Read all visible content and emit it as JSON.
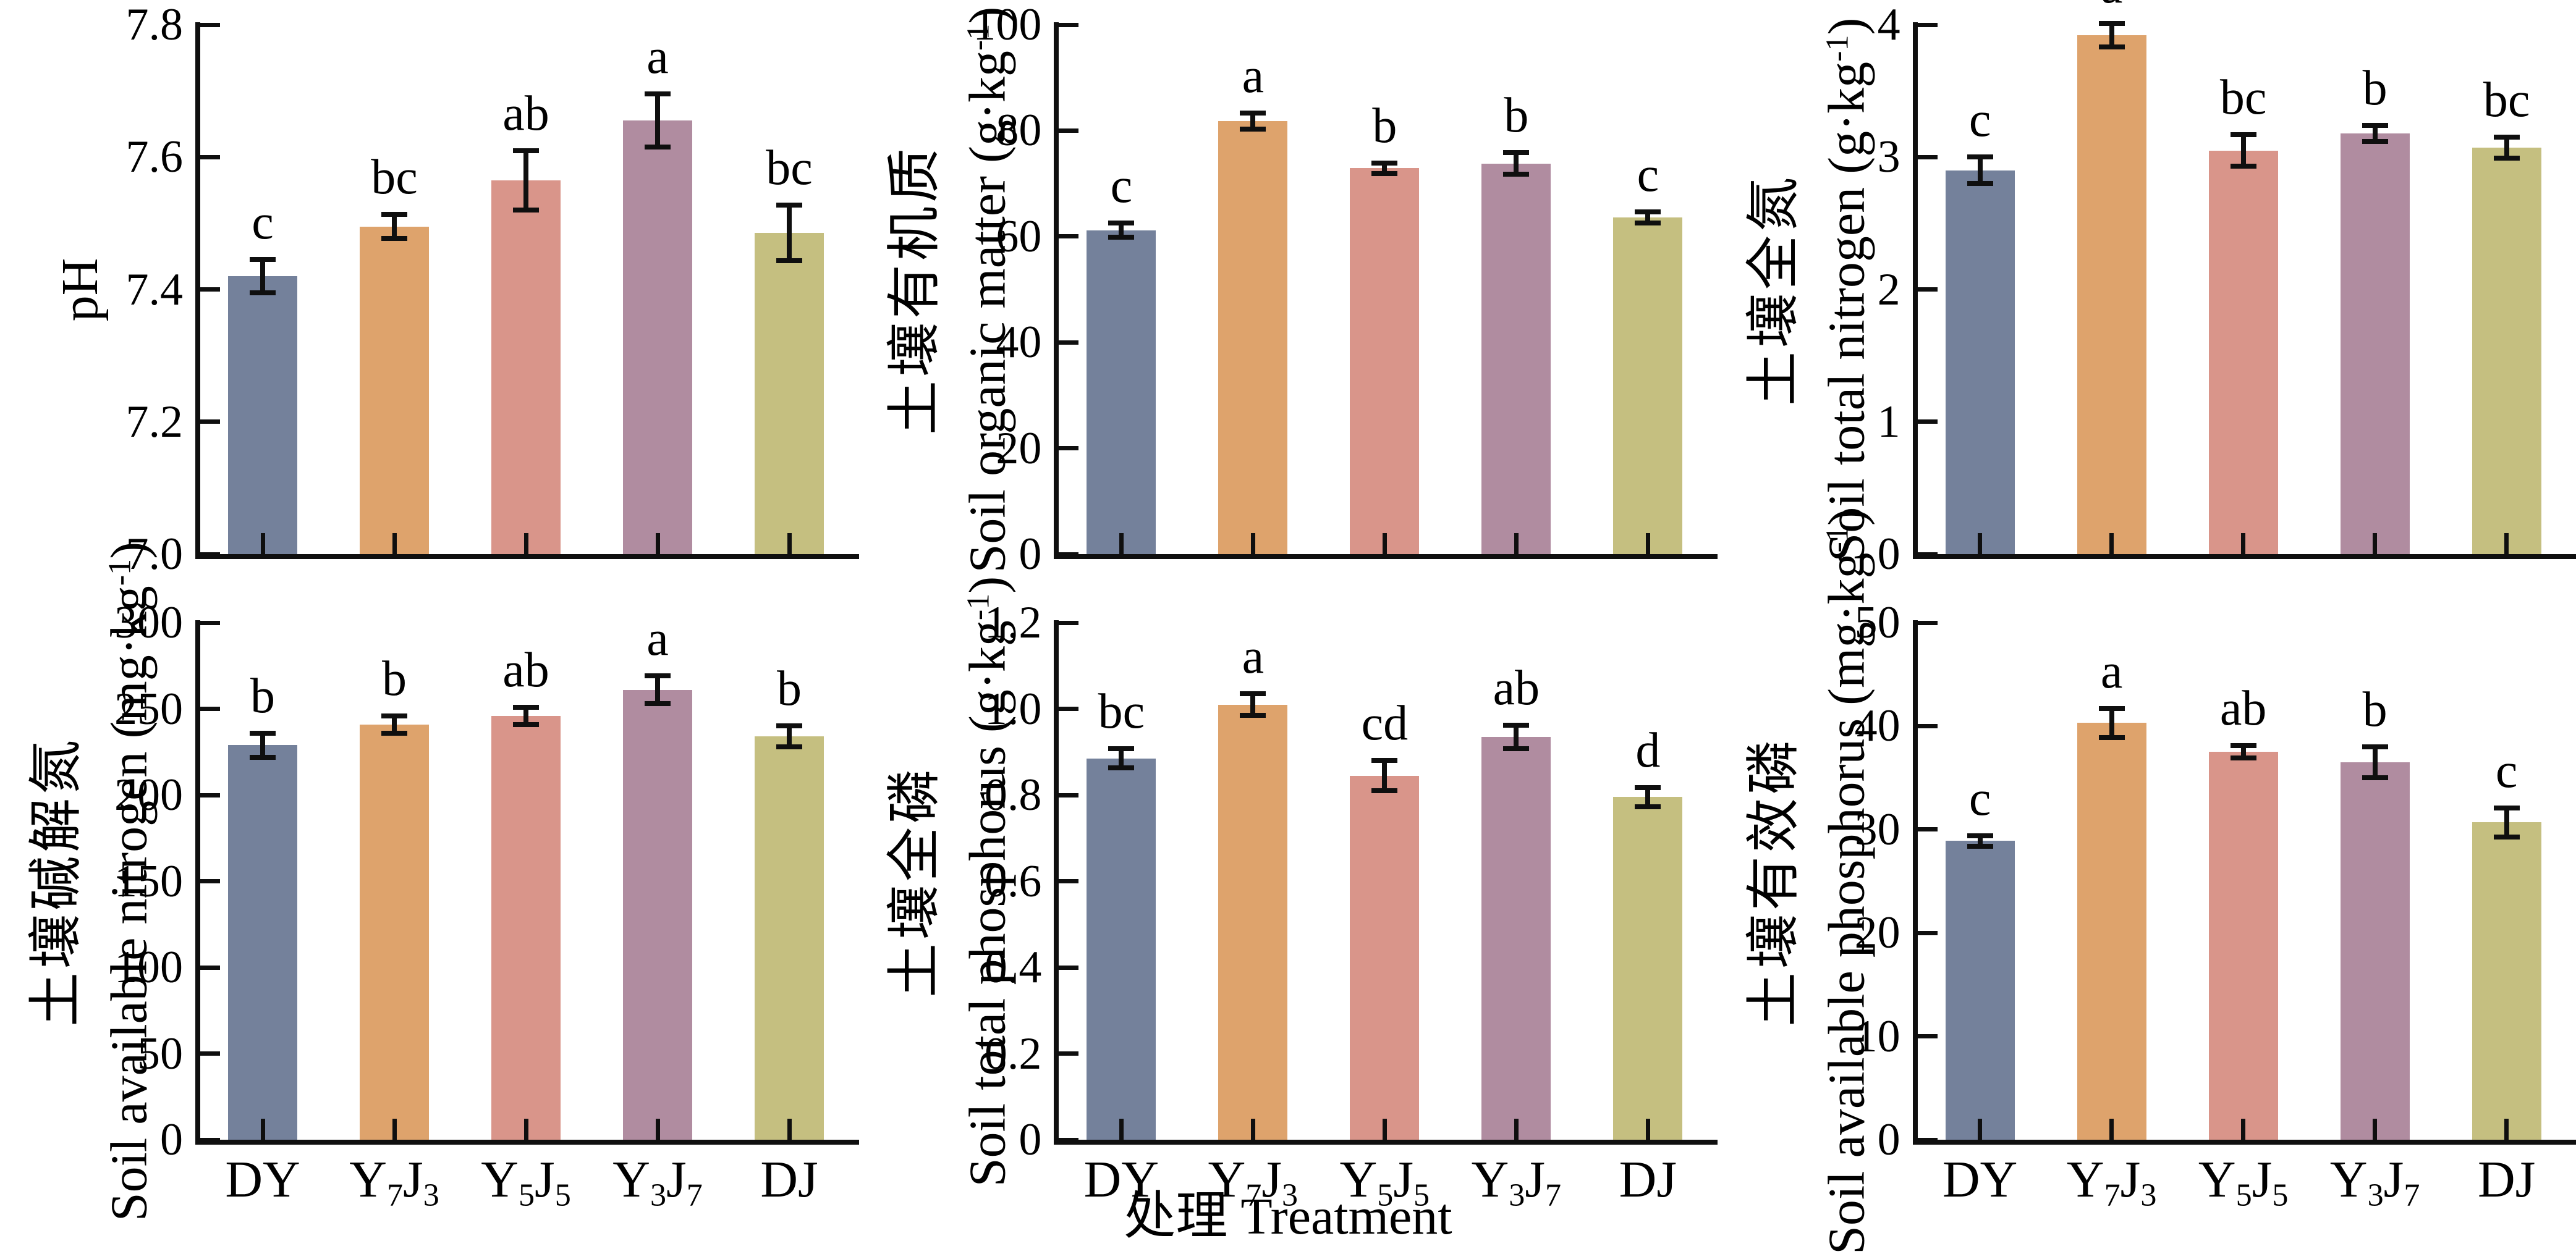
{
  "figure": {
    "xlabel": "处理 Treatment",
    "bar_colors": [
      "#74819B",
      "#DEA36C",
      "#D9958A",
      "#B08CA0",
      "#C5BF80"
    ],
    "axis_color": "#0f0f0f",
    "categories": [
      "DY",
      "Y₇J₃",
      "Y₅J₅",
      "Y₃J₇",
      "DJ"
    ]
  },
  "chart_data": [
    {
      "type": "bar",
      "name": "ph",
      "ylabel_cn": "",
      "ylabel_en": "pH",
      "unit": "",
      "categories": [
        "DY",
        "Y₇J₃",
        "Y₅J₅",
        "Y₃J₇",
        "DJ"
      ],
      "values": [
        7.42,
        7.495,
        7.565,
        7.655,
        7.485
      ],
      "errors": [
        0.025,
        0.018,
        0.045,
        0.04,
        0.042
      ],
      "sig_letters": [
        "c",
        "bc",
        "ab",
        "a",
        "bc"
      ],
      "ylim": [
        7.0,
        7.8
      ],
      "yticks": [
        "7.0",
        "7.2",
        "7.4",
        "7.6",
        "7.8"
      ],
      "grid": false,
      "position": {
        "row": 1,
        "col": 1
      }
    },
    {
      "type": "bar",
      "name": "soil-organic-matter",
      "ylabel_cn": "土壤有机质",
      "ylabel_en": "Soil organic matter",
      "unit": "g·kg⁻¹",
      "categories": [
        "DY",
        "Y₇J₃",
        "Y₅J₅",
        "Y₃J₇",
        "DJ"
      ],
      "values": [
        61.2,
        81.8,
        72.9,
        73.8,
        63.6
      ],
      "errors": [
        1.3,
        1.5,
        1.0,
        2.0,
        1.0
      ],
      "sig_letters": [
        "c",
        "a",
        "b",
        "b",
        "c"
      ],
      "ylim": [
        0,
        100
      ],
      "yticks": [
        "0",
        "20",
        "40",
        "60",
        "80",
        "100"
      ],
      "grid": false,
      "position": {
        "row": 1,
        "col": 2
      }
    },
    {
      "type": "bar",
      "name": "soil-total-nitrogen",
      "ylabel_cn": "土壤全氮",
      "ylabel_en": "Soil total nitrogen",
      "unit": "g·kg⁻¹",
      "categories": [
        "DY",
        "Y₇J₃",
        "Y₅J₅",
        "Y₃J₇",
        "DJ"
      ],
      "values": [
        2.9,
        3.92,
        3.05,
        3.18,
        3.07
      ],
      "errors": [
        0.1,
        0.09,
        0.12,
        0.06,
        0.08
      ],
      "sig_letters": [
        "c",
        "a",
        "bc",
        "b",
        "bc"
      ],
      "ylim": [
        0,
        4
      ],
      "yticks": [
        "0",
        "1",
        "2",
        "3",
        "4"
      ],
      "grid": false,
      "position": {
        "row": 1,
        "col": 3
      }
    },
    {
      "type": "bar",
      "name": "soil-available-nitrogen",
      "ylabel_cn": "土壤碱解氮",
      "ylabel_en": "Soil available nitrogen",
      "unit": "mg·kg⁻¹",
      "categories": [
        "DY",
        "Y₇J₃",
        "Y₅J₅",
        "Y₃J₇",
        "DJ"
      ],
      "values": [
        229,
        241,
        246,
        261,
        234
      ],
      "errors": [
        7,
        5,
        5,
        8,
        6
      ],
      "sig_letters": [
        "b",
        "b",
        "ab",
        "a",
        "b"
      ],
      "ylim": [
        0,
        300
      ],
      "yticks": [
        "0",
        "50",
        "100",
        "150",
        "200",
        "250",
        "300"
      ],
      "grid": false,
      "position": {
        "row": 2,
        "col": 1
      }
    },
    {
      "type": "bar",
      "name": "soil-total-phosphorus",
      "ylabel_cn": "土壤全磷",
      "ylabel_en": "Soil total phosphorus",
      "unit": "g·kg⁻¹",
      "categories": [
        "DY",
        "Y₇J₃",
        "Y₅J₅",
        "Y₃J₇",
        "DJ"
      ],
      "values": [
        0.885,
        1.01,
        0.845,
        0.935,
        0.795
      ],
      "errors": [
        0.022,
        0.025,
        0.035,
        0.027,
        0.022
      ],
      "sig_letters": [
        "bc",
        "a",
        "cd",
        "ab",
        "d"
      ],
      "ylim": [
        0,
        1.2
      ],
      "yticks": [
        "0",
        "0.2",
        "0.4",
        "0.6",
        "0.8",
        "1.0",
        "1.2"
      ],
      "grid": false,
      "position": {
        "row": 2,
        "col": 2
      }
    },
    {
      "type": "bar",
      "name": "soil-available-phosphorus",
      "ylabel_cn": "土壤有效磷",
      "ylabel_en": "Soil available phosphorus",
      "unit": "mg·kg⁻¹",
      "categories": [
        "DY",
        "Y₇J₃",
        "Y₅J₅",
        "Y₃J₇",
        "DJ"
      ],
      "values": [
        28.9,
        40.3,
        37.5,
        36.5,
        30.7
      ],
      "errors": [
        0.5,
        1.4,
        0.6,
        1.5,
        1.4
      ],
      "sig_letters": [
        "c",
        "a",
        "ab",
        "b",
        "c"
      ],
      "ylim": [
        0,
        50
      ],
      "yticks": [
        "0",
        "10",
        "20",
        "30",
        "40",
        "50"
      ],
      "grid": false,
      "position": {
        "row": 2,
        "col": 3
      }
    }
  ]
}
